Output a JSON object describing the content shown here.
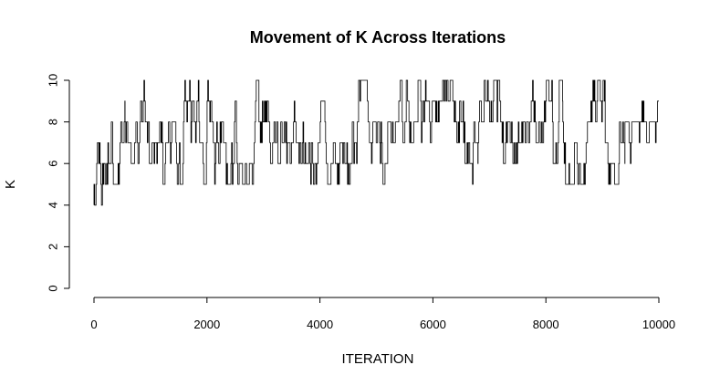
{
  "chart_data": {
    "type": "line",
    "title": "Movement of K Across Iterations",
    "xlabel": "ITERATION",
    "ylabel": "K",
    "xlim": [
      0,
      10000
    ],
    "ylim": [
      0,
      10
    ],
    "x_ticks": [
      0,
      2000,
      4000,
      6000,
      8000,
      10000
    ],
    "y_ticks": [
      0,
      2,
      4,
      6,
      8,
      10
    ],
    "x_tick_labels": [
      "0",
      "2000",
      "4000",
      "6000",
      "8000",
      "10000"
    ],
    "y_tick_labels": [
      "0",
      "2",
      "4",
      "6",
      "8",
      "10"
    ],
    "grid": false,
    "legend": "none",
    "series": [
      {
        "color": "#000000",
        "segments": [
          {
            "x_start": 0,
            "x_end": 150,
            "low": 4,
            "high": 7
          },
          {
            "x_start": 150,
            "x_end": 550,
            "low": 5,
            "high": 10
          },
          {
            "x_start": 550,
            "x_end": 800,
            "low": 5,
            "high": 8
          },
          {
            "x_start": 800,
            "x_end": 1150,
            "low": 6,
            "high": 10
          },
          {
            "x_start": 1150,
            "x_end": 1500,
            "low": 5,
            "high": 8
          },
          {
            "x_start": 1500,
            "x_end": 1750,
            "low": 5,
            "high": 10
          },
          {
            "x_start": 1750,
            "x_end": 2100,
            "low": 5,
            "high": 10
          },
          {
            "x_start": 2100,
            "x_end": 2450,
            "low": 5,
            "high": 8
          },
          {
            "x_start": 2450,
            "x_end": 2800,
            "low": 5,
            "high": 10
          },
          {
            "x_start": 2800,
            "x_end": 3150,
            "low": 5,
            "high": 10
          },
          {
            "x_start": 3150,
            "x_end": 3400,
            "low": 6,
            "high": 8
          },
          {
            "x_start": 3400,
            "x_end": 3800,
            "low": 6,
            "high": 10
          },
          {
            "x_start": 3800,
            "x_end": 4200,
            "low": 5,
            "high": 10
          },
          {
            "x_start": 4200,
            "x_end": 4600,
            "low": 5,
            "high": 9
          },
          {
            "x_start": 4600,
            "x_end": 4900,
            "low": 5,
            "high": 10
          },
          {
            "x_start": 4900,
            "x_end": 5300,
            "low": 5,
            "high": 8
          },
          {
            "x_start": 5300,
            "x_end": 5700,
            "low": 7,
            "high": 10
          },
          {
            "x_start": 5700,
            "x_end": 6100,
            "low": 7,
            "high": 10
          },
          {
            "x_start": 6100,
            "x_end": 6400,
            "low": 5,
            "high": 10
          },
          {
            "x_start": 6400,
            "x_end": 6800,
            "low": 5,
            "high": 9
          },
          {
            "x_start": 6800,
            "x_end": 7200,
            "low": 6,
            "high": 10
          },
          {
            "x_start": 7200,
            "x_end": 7500,
            "low": 5,
            "high": 8
          },
          {
            "x_start": 7500,
            "x_end": 7900,
            "low": 7,
            "high": 10
          },
          {
            "x_start": 7900,
            "x_end": 8300,
            "low": 6,
            "high": 10
          },
          {
            "x_start": 8300,
            "x_end": 8700,
            "low": 5,
            "high": 8
          },
          {
            "x_start": 8700,
            "x_end": 9050,
            "low": 6,
            "high": 10
          },
          {
            "x_start": 9050,
            "x_end": 9400,
            "low": 5,
            "high": 8
          },
          {
            "x_start": 9400,
            "x_end": 9700,
            "low": 5,
            "high": 8
          },
          {
            "x_start": 9700,
            "x_end": 10000,
            "low": 7,
            "high": 10
          }
        ]
      }
    ]
  }
}
